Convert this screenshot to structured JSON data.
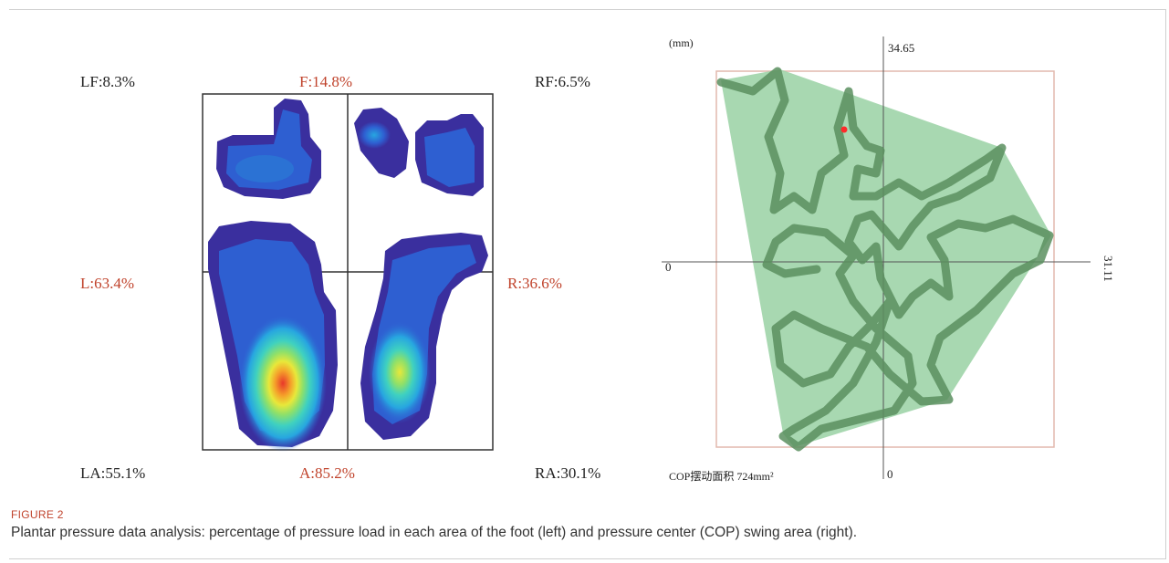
{
  "figure": {
    "tag": "FIGURE 2",
    "caption": "Plantar pressure data analysis: percentage of pressure load in each area of the foot (left) and pressure center (COP) swing area (right)."
  },
  "foot_panel": {
    "labels": {
      "lf": "LF:8.3%",
      "f": "F:14.8%",
      "rf": "RF:6.5%",
      "l": "L:63.4%",
      "r": "R:36.6%",
      "la": "LA:55.1%",
      "a": "A:85.2%",
      "ra": "RA:30.1%"
    },
    "regions": {
      "LF": 8.3,
      "F": 14.8,
      "RF": 6.5,
      "L": 63.4,
      "R": 36.6,
      "LA": 55.1,
      "A": 85.2,
      "RA": 30.1
    },
    "heat_colors": [
      "#3a2f9e",
      "#2e5fd1",
      "#27a6e0",
      "#3fd1c0",
      "#8ee06a",
      "#e8e83a",
      "#f5a02a",
      "#e8372a"
    ],
    "label_color": "#c0432c"
  },
  "cop_panel": {
    "unit": "(mm)",
    "top_value": "34.65",
    "right_value": "31.11",
    "left_zero": "0",
    "bottom_zero": "0",
    "area_label": "COP摆动面积 724mm²",
    "fill_color": "#9fd4a8",
    "trace_color": "#5a8f5f",
    "center_point_color": "#ff2a2a"
  }
}
